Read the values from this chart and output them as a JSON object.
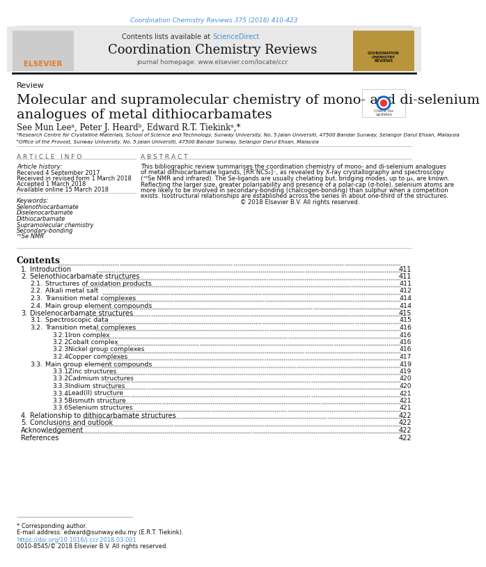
{
  "page_width": 5.95,
  "page_height": 7.94,
  "bg_color": "#ffffff",
  "journal_ref_text": "Coordination Chemistry Reviews 375 (2018) 410-423",
  "journal_ref_color": "#4a90d9",
  "journal_name": "Coordination Chemistry Reviews",
  "journal_homepage": "journal homepage: www.elsevier.com/locate/ccr",
  "contents_available": "Contents lists available at ",
  "science_direct": "ScienceDirect",
  "header_bg": "#e8e8e8",
  "review_label": "Review",
  "article_title_line1": "Molecular and supramolecular chemistry of mono- and di-selenium",
  "article_title_line2": "analogues of metal dithiocarbamates",
  "authors": "See Mun Leeᵃ, Peter J. Heardᵇ, Edward R.T. Tiekinkᵃ,*",
  "affil_a": "ᵃResearch Centre for Crystalline Materials, School of Science and Technology, Sunway University, No. 5 Jalan Universiti, 47500 Bandar Sunway, Selangor Darul Ehsan, Malaysia",
  "affil_b": "ᵇOffice of the Provost, Sunway University, No. 5 Jalan Universiti, 47500 Bandar Sunway, Selangor Darul Ehsan, Malaysia",
  "article_info_title": "A R T I C L E   I N F O",
  "abstract_title": "A B S T R A C T",
  "article_history_label": "Article history:",
  "received_1": "Received 4 September 2017",
  "received_2": "Received in revised form 1 March 2018",
  "accepted": "Accepted 1 March 2018",
  "available": "Available online 15 March 2018",
  "keywords_label": "Keywords:",
  "keywords": [
    "Selenothiocarbamate",
    "Diselenocarbamate",
    "Dithiocarbamate",
    "Supramolecular chemistry",
    "Secondary-bonding",
    "⁷⁵Se NMR"
  ],
  "abstract_lines": [
    "This bibliographic review summarises the coordination chemistry of mono- and di-selenium analogues",
    "of metal dithiocarbamate ligands, [RR’NCS₂]⁻, as revealed by X-ray crystallography and spectroscopy",
    "(⁷⁵Se NMR and infrared). The Se-ligands are usually chelating but, bridging modes, up to μ₄, are known.",
    "Reflecting the larger size, greater polarisability and presence of a polar-cap (σ-hole), selenium atoms are",
    "more likely to be involved in secondary-bonding (chalcogen-bonding) than sulphur when a competition",
    "exists. Isostructural relationships are established across the series in about one-third of the structures.",
    "                                                    © 2018 Elsevier B.V. All rights reserved."
  ],
  "contents_title": "Contents",
  "contents_items": [
    {
      "level": 1,
      "num": "1.",
      "text": "Introduction",
      "page": "411"
    },
    {
      "level": 1,
      "num": "2.",
      "text": "Selenothiocarbamate structures",
      "page": "411"
    },
    {
      "level": 2,
      "num": "2.1.",
      "text": "Structures of oxidation products",
      "page": "411"
    },
    {
      "level": 2,
      "num": "2.2.",
      "text": "Alkali metal salt",
      "page": "412"
    },
    {
      "level": 2,
      "num": "2.3.",
      "text": "Transition metal complexes",
      "page": "414"
    },
    {
      "level": 2,
      "num": "2.4.",
      "text": "Main group element compounds",
      "page": "414"
    },
    {
      "level": 1,
      "num": "3.",
      "text": "Diselenocarbamate structures",
      "page": "415"
    },
    {
      "level": 2,
      "num": "3.1.",
      "text": "Spectroscopic data",
      "page": "415"
    },
    {
      "level": 2,
      "num": "3.2.",
      "text": "Transition metal complexes",
      "page": "416"
    },
    {
      "level": 3,
      "num": "3.2.1.",
      "text": "Iron complex",
      "page": "416"
    },
    {
      "level": 3,
      "num": "3.2.2.",
      "text": "Cobalt complex",
      "page": "416"
    },
    {
      "level": 3,
      "num": "3.2.3.",
      "text": "Nickel group complexes",
      "page": "416"
    },
    {
      "level": 3,
      "num": "3.2.4.",
      "text": "Copper complexes",
      "page": "417"
    },
    {
      "level": 2,
      "num": "3.3.",
      "text": "Main group element compounds",
      "page": "419"
    },
    {
      "level": 3,
      "num": "3.3.1.",
      "text": "Zinc structures",
      "page": "419"
    },
    {
      "level": 3,
      "num": "3.3.2.",
      "text": "Cadmium structures",
      "page": "420"
    },
    {
      "level": 3,
      "num": "3.3.3.",
      "text": "Indium structures",
      "page": "420"
    },
    {
      "level": 3,
      "num": "3.3.4.",
      "text": "Lead(II) structure",
      "page": "421"
    },
    {
      "level": 3,
      "num": "3.3.5.",
      "text": "Bismuth structure",
      "page": "421"
    },
    {
      "level": 3,
      "num": "3.3.6.",
      "text": "Selenium structures",
      "page": "421"
    },
    {
      "level": 1,
      "num": "4.",
      "text": "Relationship to dithiocarbamate structures",
      "page": "422"
    },
    {
      "level": 1,
      "num": "5.",
      "text": "Conclusions and outlook",
      "page": "422"
    },
    {
      "level": 0,
      "num": "",
      "text": "Acknowledgement",
      "page": "422"
    },
    {
      "level": 0,
      "num": "",
      "text": "References",
      "page": "422"
    }
  ],
  "footer_text_1": "* Corresponding author.",
  "footer_text_2": "E-mail address: edward@sunway.edu.my (E.R.T. Tiekink).",
  "footer_doi": "https://doi.org/10.1016/j.ccr.2018.03.001",
  "footer_issn": "0010-8545/© 2018 Elsevier B.V. All rights reserved.",
  "link_color": "#4a90d9",
  "text_color": "#000000",
  "gray_color": "#555555"
}
